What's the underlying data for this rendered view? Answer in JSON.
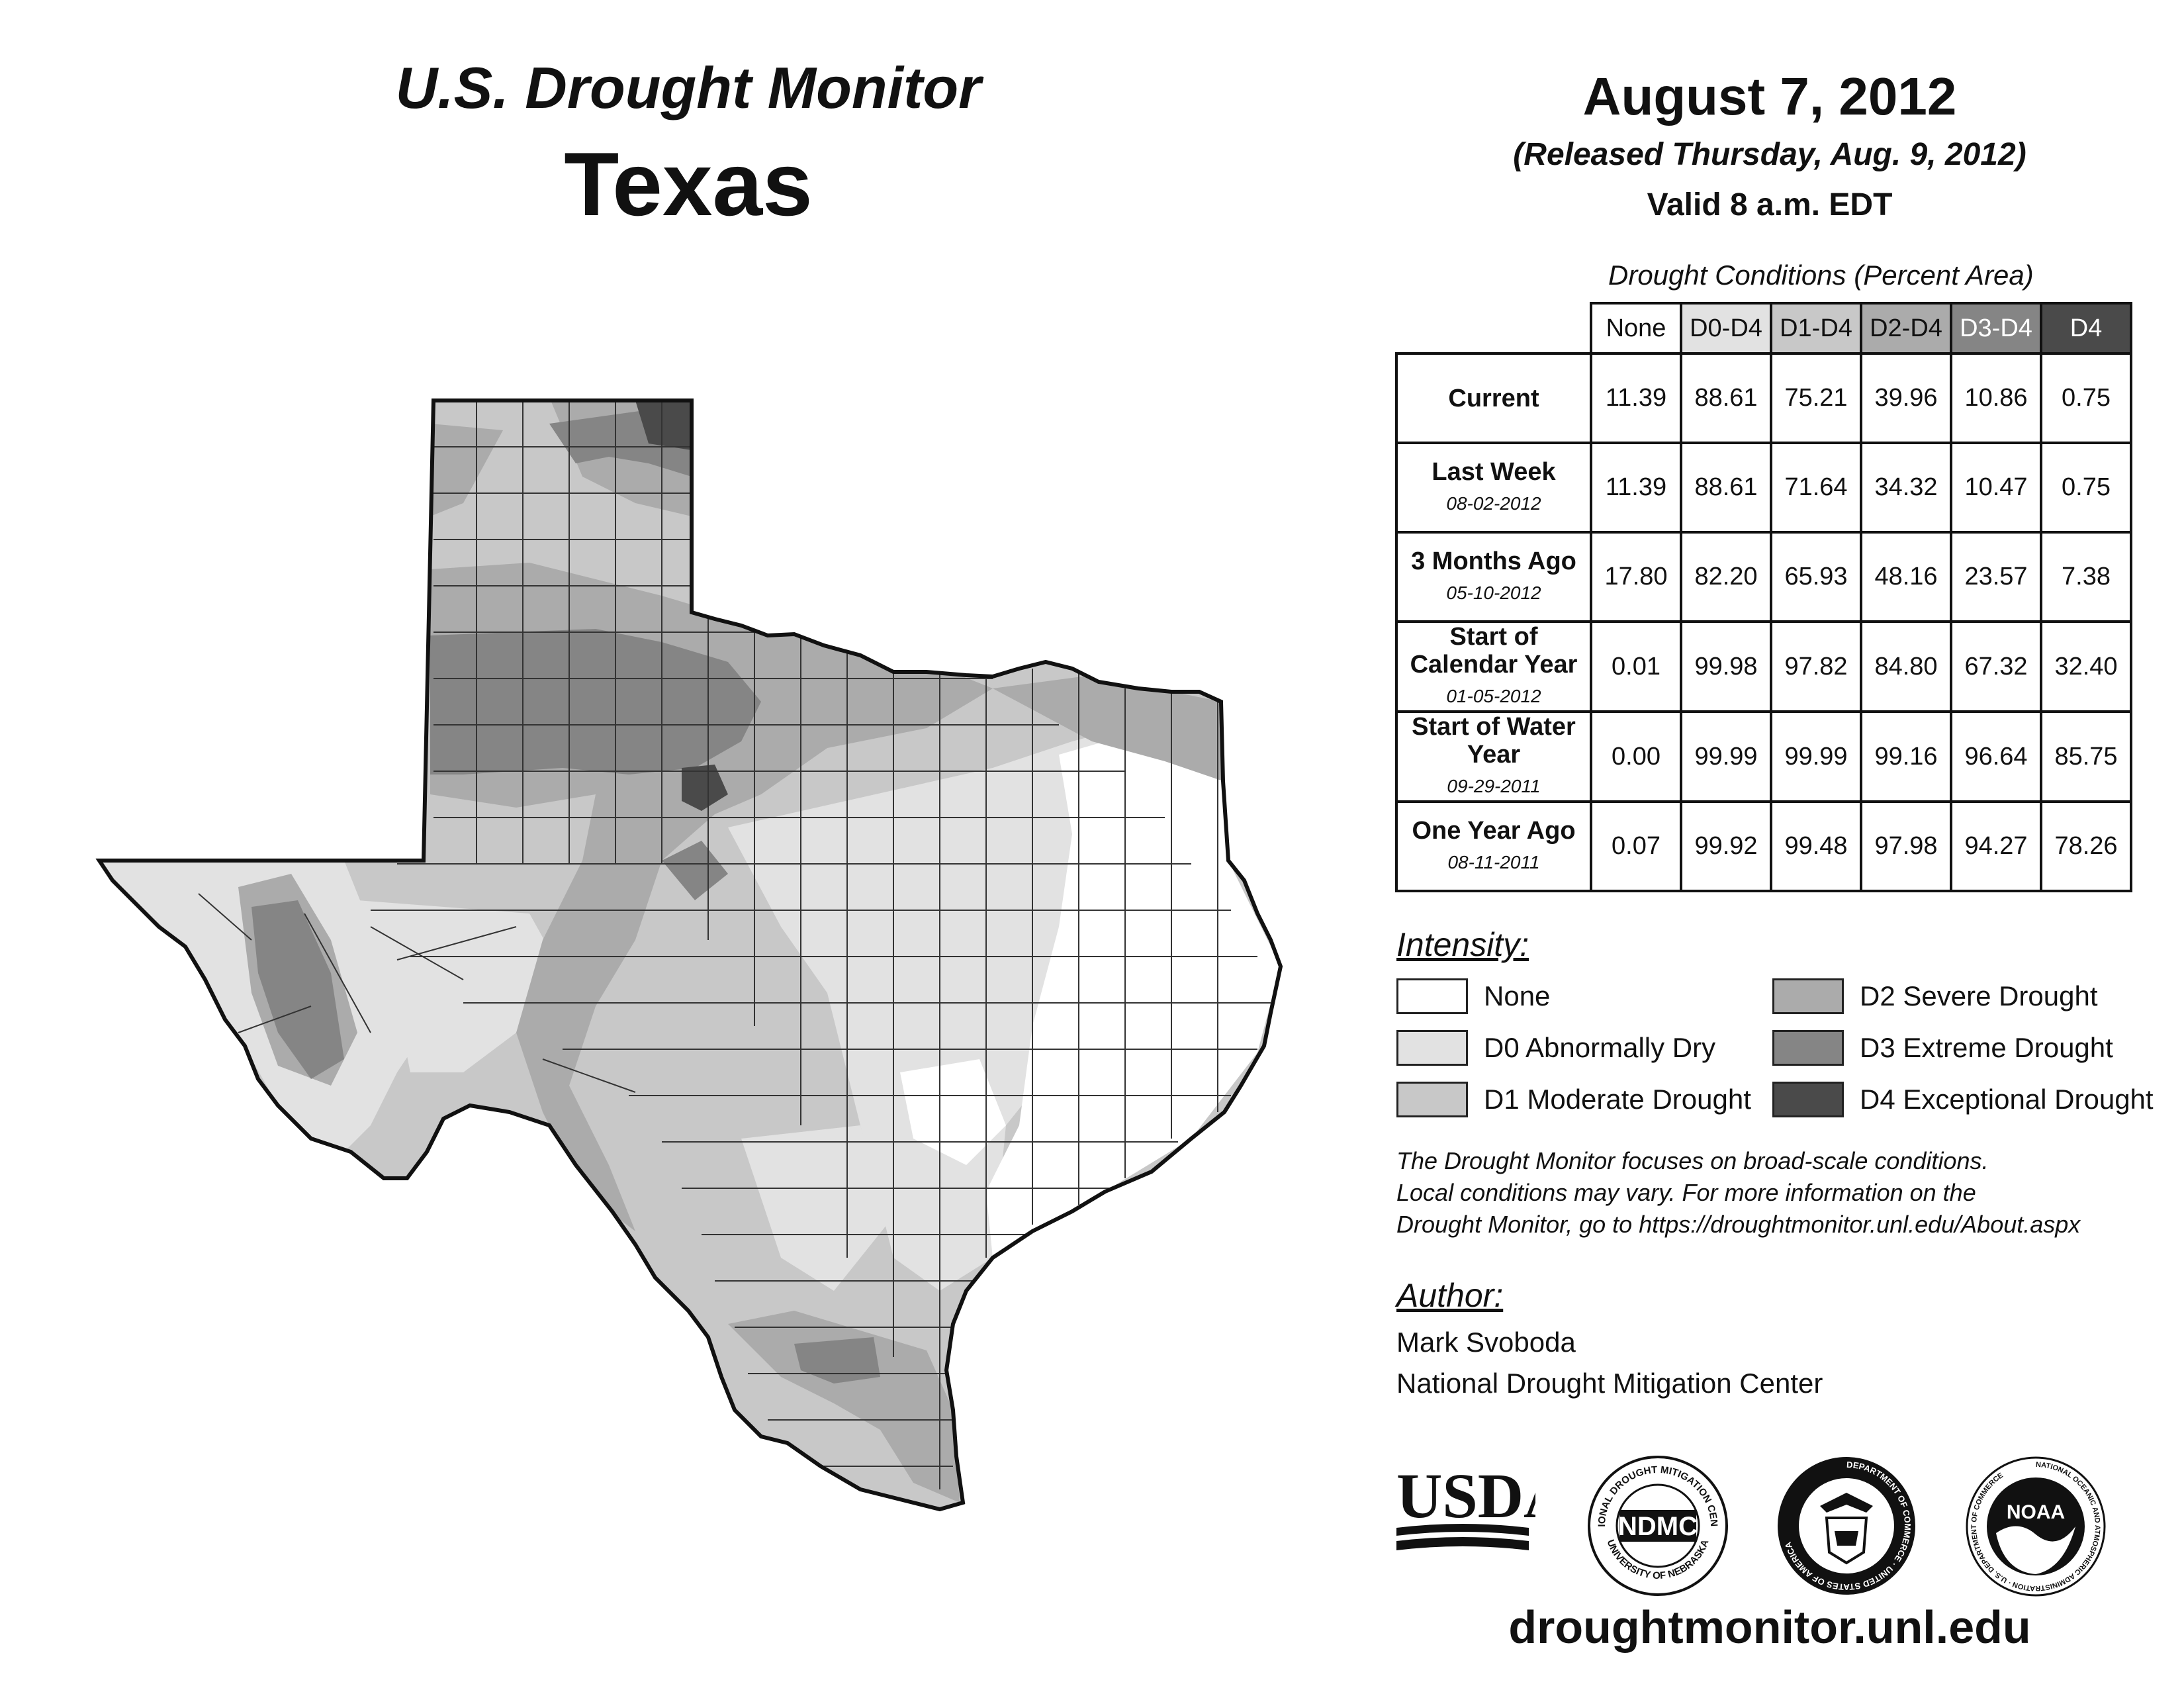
{
  "header": {
    "title": "U.S. Drought Monitor",
    "state": "Texas",
    "date": "August 7, 2012",
    "released": "(Released Thursday, Aug. 9, 2012)",
    "valid": "Valid 8 a.m. EDT"
  },
  "table": {
    "caption": "Drought Conditions (Percent Area)",
    "columns": [
      "None",
      "D0-D4",
      "D1-D4",
      "D2-D4",
      "D3-D4",
      "D4"
    ],
    "rows": [
      {
        "label": "Current",
        "sublabel": "",
        "values": [
          "11.39",
          "88.61",
          "75.21",
          "39.96",
          "10.86",
          "0.75"
        ]
      },
      {
        "label": "Last Week",
        "sublabel": "08-02-2012",
        "values": [
          "11.39",
          "88.61",
          "71.64",
          "34.32",
          "10.47",
          "0.75"
        ]
      },
      {
        "label": "3 Months Ago",
        "sublabel": "05-10-2012",
        "values": [
          "17.80",
          "82.20",
          "65.93",
          "48.16",
          "23.57",
          "7.38"
        ]
      },
      {
        "label": "Start of Calendar Year",
        "sublabel": "01-05-2012",
        "values": [
          "0.01",
          "99.98",
          "97.82",
          "84.80",
          "67.32",
          "32.40"
        ]
      },
      {
        "label": "Start of Water Year",
        "sublabel": "09-29-2011",
        "values": [
          "0.00",
          "99.99",
          "99.99",
          "99.16",
          "96.64",
          "85.75"
        ]
      },
      {
        "label": "One Year Ago",
        "sublabel": "08-11-2011",
        "values": [
          "0.07",
          "99.92",
          "99.48",
          "97.98",
          "94.27",
          "78.26"
        ]
      }
    ]
  },
  "legend": {
    "title": "Intensity:",
    "items": [
      {
        "label": "None",
        "color": "#ffffff"
      },
      {
        "label": "D0 Abnormally Dry",
        "color": "#e2e2e2"
      },
      {
        "label": "D1 Moderate Drought",
        "color": "#c8c8c8"
      },
      {
        "label": "D2 Severe Drought",
        "color": "#ababab"
      },
      {
        "label": "D3 Extreme Drought",
        "color": "#858585"
      },
      {
        "label": "D4 Exceptional Drought",
        "color": "#4a4a4a"
      }
    ]
  },
  "header_colors": [
    "#ffffff",
    "#e2e2e2",
    "#c8c8c8",
    "#ababab",
    "#858585",
    "#4a4a4a"
  ],
  "note": [
    "The Drought Monitor focuses on broad-scale conditions.",
    "Local conditions may vary. For more information on the",
    "Drought Monitor, go to https://droughtmonitor.unl.edu/About.aspx"
  ],
  "author": {
    "title": "Author:",
    "name": "Mark Svoboda",
    "org": "National Drought Mitigation Center"
  },
  "logos": {
    "usda": "USDA",
    "ndmc": "NDMC",
    "ndmc_ring_top": "NATIONAL DROUGHT MITIGATION CENTER",
    "ndmc_ring_bottom": "UNIVERSITY OF NEBRASKA",
    "doc_ring": "DEPARTMENT OF COMMERCE · UNITED STATES OF AMERICA",
    "noaa": "NOAA",
    "noaa_ring": "NATIONAL OCEANIC AND ATMOSPHERIC ADMINISTRATION · U.S. DEPARTMENT OF COMMERCE"
  },
  "website": "droughtmonitor.unl.edu"
}
